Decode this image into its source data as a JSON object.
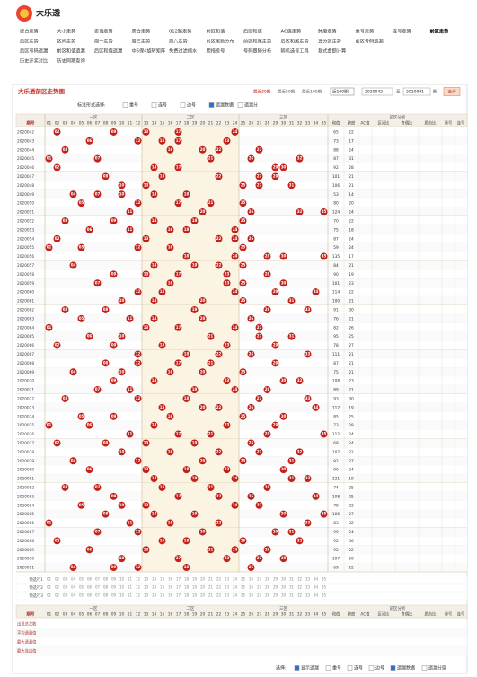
{
  "header": {
    "logo": "大乐透"
  },
  "nav": {
    "rows": [
      [
        "综合走势",
        "大小走势",
        "奇偶走势",
        "质合走势",
        "012路走势",
        "前区和值",
        "后区和值",
        "AC值走势",
        "跨度走势",
        "重号走势",
        "连号走势",
        "前区走势"
      ],
      [
        "后区走势",
        "区间走势",
        "周一走势",
        "周三走势",
        "周六走势",
        "前区尾数分布",
        "前区和尾走势",
        "后区和尾走势",
        "五分区走势",
        "前区号码遗漏"
      ],
      [
        "后区号码遗漏",
        "前区和值遗漏",
        "后区和值遗漏",
        "中5保4旋转矩阵",
        "免费过滤缩水",
        "胆拖投号",
        "号码跟随分析",
        "随机选号工具",
        "复式金额计算"
      ],
      [
        "历史开奖对比",
        "历史同期查询"
      ]
    ]
  },
  "panel": {
    "title": "大乐透前区走势图",
    "quick": [
      "最近30期",
      "最近50期",
      "最近100期"
    ],
    "select": "近100期",
    "from": "2020042",
    "to_label": "至",
    "to": "2020091",
    "unit": "期",
    "button": "查询",
    "options_label": "标注形式选择:",
    "options": [
      {
        "label": "重号",
        "checked": false
      },
      {
        "label": "连号",
        "checked": false
      },
      {
        "label": "边号",
        "checked": false
      },
      {
        "label": "遗漏数据",
        "checked": true
      },
      {
        "label": "遗漏分",
        "checked": false
      }
    ]
  },
  "table": {
    "period_header": "期号",
    "zones": [
      "一区",
      "二区",
      "三区"
    ],
    "analysis_header": "前区分析",
    "numbers": [
      "01",
      "02",
      "03",
      "04",
      "05",
      "06",
      "07",
      "08",
      "09",
      "10",
      "11",
      "12",
      "13",
      "14",
      "15",
      "16",
      "17",
      "18",
      "19",
      "20",
      "21",
      "22",
      "23",
      "24",
      "25",
      "26",
      "27",
      "28",
      "29",
      "30",
      "31",
      "32",
      "33",
      "34",
      "35"
    ],
    "stat_headers": [
      "和值",
      "跨度",
      "AC值",
      "区间比",
      "奇偶比",
      "质合比",
      "重号",
      "连号"
    ],
    "rows": [
      {
        "period": "2020042",
        "balls": [
          "02",
          "09",
          "13",
          "17",
          "24"
        ],
        "sum": "65",
        "span": "22"
      },
      {
        "period": "2020043",
        "balls": [
          "06",
          "12",
          "15",
          "17",
          "23"
        ],
        "sum": "73",
        "span": "17"
      },
      {
        "period": "2020044",
        "balls": [
          "03",
          "16",
          "20",
          "22",
          "27"
        ],
        "sum": "88",
        "span": "24"
      },
      {
        "period": "2020045",
        "balls": [
          "01",
          "07",
          "21",
          "26",
          "32"
        ],
        "sum": "87",
        "span": "31"
      },
      {
        "period": "2020046",
        "balls": [
          "02",
          "14",
          "17",
          "29",
          "30"
        ],
        "sum": "92",
        "span": "28"
      },
      {
        "period": "2020047",
        "balls": [
          "08",
          "15",
          "22",
          "27",
          "29"
        ],
        "sum": "101",
        "span": "21"
      },
      {
        "period": "2020048",
        "balls": [
          "10",
          "13",
          "25",
          "27",
          "31"
        ],
        "sum": "106",
        "span": "21"
      },
      {
        "period": "2020049",
        "balls": [
          "04",
          "07",
          "10",
          "14",
          "18"
        ],
        "sum": "53",
        "span": "14"
      },
      {
        "period": "2020050",
        "balls": [
          "05",
          "12",
          "17",
          "21",
          "25"
        ],
        "sum": "80",
        "span": "20"
      },
      {
        "period": "2020051",
        "balls": [
          "11",
          "20",
          "26",
          "32",
          "35"
        ],
        "sum": "124",
        "span": "24"
      },
      {
        "period": "2020052",
        "balls": [
          "03",
          "09",
          "14",
          "19",
          "25"
        ],
        "sum": "70",
        "span": "22"
      },
      {
        "period": "2020053",
        "balls": [
          "06",
          "11",
          "16",
          "18",
          "24"
        ],
        "sum": "75",
        "span": "18"
      },
      {
        "period": "2020054",
        "balls": [
          "02",
          "13",
          "22",
          "24",
          "26"
        ],
        "sum": "87",
        "span": "24"
      },
      {
        "period": "2020055",
        "balls": [
          "01",
          "05",
          "12",
          "16",
          "25"
        ],
        "sum": "59",
        "span": "24"
      },
      {
        "period": "2020056",
        "balls": [
          "18",
          "24",
          "28",
          "30",
          "35"
        ],
        "sum": "135",
        "span": "17"
      },
      {
        "period": "2020057",
        "balls": [
          "04",
          "14",
          "19",
          "22",
          "25"
        ],
        "sum": "84",
        "span": "21"
      },
      {
        "period": "2020058",
        "balls": [
          "09",
          "13",
          "17",
          "23",
          "28"
        ],
        "sum": "90",
        "span": "19"
      },
      {
        "period": "2020059",
        "balls": [
          "07",
          "16",
          "23",
          "25",
          "30"
        ],
        "sum": "101",
        "span": "23"
      },
      {
        "period": "2020060",
        "balls": [
          "12",
          "15",
          "24",
          "29",
          "34"
        ],
        "sum": "114",
        "span": "22"
      },
      {
        "period": "2020061",
        "balls": [
          "10",
          "14",
          "20",
          "25",
          "31"
        ],
        "sum": "100",
        "span": "21"
      },
      {
        "period": "2020062",
        "balls": [
          "03",
          "08",
          "19",
          "28",
          "33"
        ],
        "sum": "91",
        "span": "30"
      },
      {
        "period": "2020063",
        "balls": [
          "05",
          "11",
          "14",
          "20",
          "26"
        ],
        "sum": "76",
        "span": "21"
      },
      {
        "period": "2020064",
        "balls": [
          "01",
          "13",
          "17",
          "24",
          "27"
        ],
        "sum": "82",
        "span": "26"
      },
      {
        "period": "2020065",
        "balls": [
          "06",
          "10",
          "21",
          "27",
          "31"
        ],
        "sum": "95",
        "span": "25"
      },
      {
        "period": "2020066",
        "balls": [
          "02",
          "09",
          "15",
          "23",
          "29"
        ],
        "sum": "78",
        "span": "27"
      },
      {
        "period": "2020067",
        "balls": [
          "12",
          "18",
          "22",
          "26",
          "33"
        ],
        "sum": "111",
        "span": "21"
      },
      {
        "period": "2020068",
        "balls": [
          "08",
          "12",
          "17",
          "21",
          "29"
        ],
        "sum": "87",
        "span": "21"
      },
      {
        "period": "2020069",
        "balls": [
          "04",
          "10",
          "16",
          "20",
          "25"
        ],
        "sum": "75",
        "span": "21"
      },
      {
        "period": "2020070",
        "balls": [
          "09",
          "14",
          "23",
          "30",
          "32"
        ],
        "sum": "108",
        "span": "23"
      },
      {
        "period": "2020071",
        "balls": [
          "07",
          "11",
          "19",
          "24",
          "28"
        ],
        "sum": "89",
        "span": "21"
      },
      {
        "period": "2020072",
        "balls": [
          "03",
          "12",
          "18",
          "27",
          "33"
        ],
        "sum": "93",
        "span": "30"
      },
      {
        "period": "2020073",
        "balls": [
          "15",
          "20",
          "22",
          "26",
          "34"
        ],
        "sum": "117",
        "span": "19"
      },
      {
        "period": "2020074",
        "balls": [
          "05",
          "09",
          "16",
          "25",
          "30"
        ],
        "sum": "85",
        "span": "25"
      },
      {
        "period": "2020075",
        "balls": [
          "01",
          "06",
          "14",
          "23",
          "29"
        ],
        "sum": "73",
        "span": "28"
      },
      {
        "period": "2020076",
        "balls": [
          "11",
          "17",
          "21",
          "28",
          "35"
        ],
        "sum": "112",
        "span": "24"
      },
      {
        "period": "2020077",
        "balls": [
          "02",
          "08",
          "13",
          "19",
          "26"
        ],
        "sum": "68",
        "span": "24"
      },
      {
        "period": "2020078",
        "balls": [
          "10",
          "16",
          "22",
          "27",
          "32"
        ],
        "sum": "107",
        "span": "22"
      },
      {
        "period": "2020079",
        "balls": [
          "04",
          "12",
          "20",
          "25",
          "31"
        ],
        "sum": "92",
        "span": "27"
      },
      {
        "period": "2020080",
        "balls": [
          "06",
          "13",
          "18",
          "23",
          "30"
        ],
        "sum": "90",
        "span": "24"
      },
      {
        "period": "2020081",
        "balls": [
          "14",
          "19",
          "24",
          "31",
          "33"
        ],
        "sum": "121",
        "span": "19"
      },
      {
        "period": "2020082",
        "balls": [
          "03",
          "07",
          "15",
          "21",
          "28"
        ],
        "sum": "74",
        "span": "25"
      },
      {
        "period": "2020083",
        "balls": [
          "09",
          "17",
          "22",
          "26",
          "34"
        ],
        "sum": "108",
        "span": "25"
      },
      {
        "period": "2020084",
        "balls": [
          "05",
          "10",
          "13",
          "24",
          "27"
        ],
        "sum": "79",
        "span": "22"
      },
      {
        "period": "2020085",
        "balls": [
          "08",
          "14",
          "19",
          "30",
          "35"
        ],
        "sum": "106",
        "span": "27"
      },
      {
        "period": "2020086",
        "balls": [
          "01",
          "11",
          "16",
          "22",
          "33"
        ],
        "sum": "83",
        "span": "32"
      },
      {
        "period": "2020087",
        "balls": [
          "07",
          "12",
          "20",
          "29",
          "31"
        ],
        "sum": "99",
        "span": "24"
      },
      {
        "period": "2020088",
        "balls": [
          "02",
          "15",
          "18",
          "25",
          "32"
        ],
        "sum": "92",
        "span": "30"
      },
      {
        "period": "2020089",
        "balls": [
          "06",
          "13",
          "21",
          "24",
          "28"
        ],
        "sum": "92",
        "span": "22"
      },
      {
        "period": "2020090",
        "balls": [
          "10",
          "17",
          "23",
          "27",
          "30"
        ],
        "sum": "107",
        "span": "20"
      },
      {
        "period": "2020091",
        "balls": [
          "04",
          "09",
          "12",
          "18",
          "26"
        ],
        "sum": "69",
        "span": "22"
      }
    ],
    "preselect": [
      "预选行1",
      "预选行2",
      "预选行3"
    ],
    "stats_rows": [
      "出现总次数",
      "平均遗漏值",
      "最大遗漏值",
      "最大连出值"
    ]
  },
  "footer": {
    "label": "选择:",
    "options": [
      {
        "label": "显示遗漏",
        "checked": true
      },
      {
        "label": "重号",
        "checked": false
      },
      {
        "label": "连号",
        "checked": false
      },
      {
        "label": "边号",
        "checked": false
      },
      {
        "label": "遗漏数据",
        "checked": true
      },
      {
        "label": "遗漏分层",
        "checked": false
      }
    ]
  }
}
